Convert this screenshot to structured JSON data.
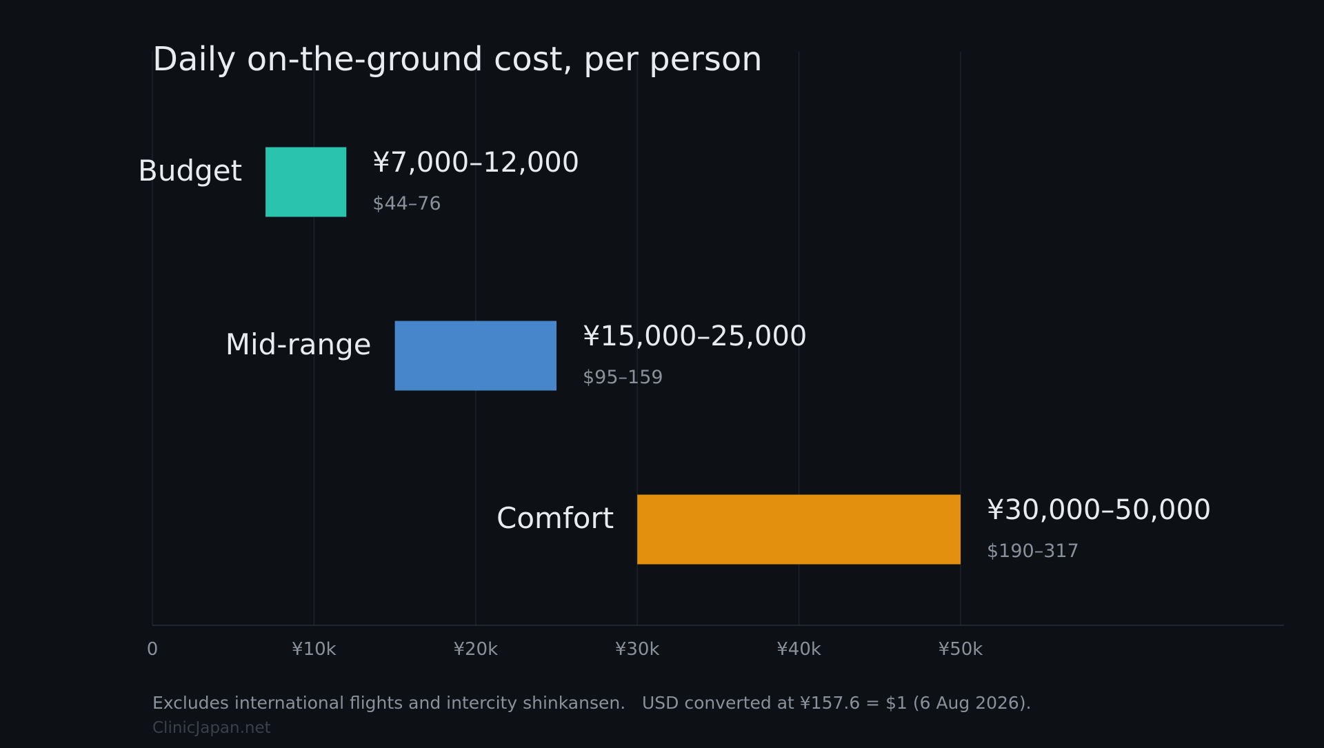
{
  "chart_data": {
    "type": "bar",
    "subtype": "floating-range-horizontal",
    "title": "Daily on-the-ground cost, per person",
    "xlabel": "",
    "ylabel": "",
    "xlim": [
      0,
      70000
    ],
    "x_ticks": [
      {
        "value": 0,
        "label": "0"
      },
      {
        "value": 10000,
        "label": "¥10k"
      },
      {
        "value": 20000,
        "label": "¥20k"
      },
      {
        "value": 30000,
        "label": "¥30k"
      },
      {
        "value": 40000,
        "label": "¥40k"
      },
      {
        "value": 50000,
        "label": "¥50k"
      }
    ],
    "grid": "vertical",
    "categories": [
      "Budget",
      "Mid-range",
      "Comfort"
    ],
    "ranges": [
      {
        "category": "Budget",
        "low": 7000,
        "high": 12000,
        "label": "¥7,000–12,000",
        "sublabel": "$44–76",
        "color": "#2ac3ae"
      },
      {
        "category": "Mid-range",
        "low": 15000,
        "high": 25000,
        "label": "¥15,000–25,000",
        "sublabel": "$95–159",
        "color": "#4786cb"
      },
      {
        "category": "Comfort",
        "low": 30000,
        "high": 50000,
        "label": "¥30,000–50,000",
        "sublabel": "$190–317",
        "color": "#e2900d"
      }
    ],
    "footnote": "Excludes international flights and intercity shinkansen.   USD converted at ¥157.6 = $1 (6 Aug 2026).",
    "credit": "ClinicJapan.net"
  },
  "colors": {
    "background": "#0d1015",
    "text_primary": "#e8ebef",
    "text_muted": "#8a919b",
    "text_faint": "#3b4048",
    "grid": "#1e2229",
    "axis": "#2a2f37"
  }
}
